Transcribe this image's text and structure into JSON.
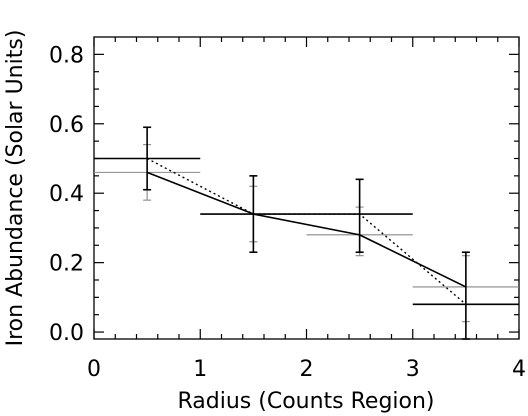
{
  "chart_data": {
    "type": "scatter",
    "xlabel": "Radius (Counts Region)",
    "ylabel": "Iron Abundance (Solar Units)",
    "xlim": [
      0,
      4
    ],
    "ylim": [
      -0.02,
      0.85
    ],
    "xticks": [
      "0",
      "1",
      "2",
      "3",
      "4"
    ],
    "yticks": [
      "0.0",
      "0.2",
      "0.4",
      "0.6",
      "0.8"
    ],
    "xtick_values": [
      0,
      1,
      2,
      3,
      4
    ],
    "ytick_values": [
      0.0,
      0.2,
      0.4,
      0.6,
      0.8
    ],
    "grid": false,
    "series": [
      {
        "style": "black-errorbars",
        "color": "#000000",
        "points": [
          {
            "x": 0.5,
            "y": 0.5,
            "xerr": 0.5,
            "ylo": 0.41,
            "yhi": 0.59
          },
          {
            "x": 1.5,
            "y": 0.34,
            "xerr": 0.5,
            "ylo": 0.23,
            "yhi": 0.45
          },
          {
            "x": 2.5,
            "y": 0.34,
            "xerr": 0.5,
            "ylo": 0.23,
            "yhi": 0.44
          },
          {
            "x": 3.5,
            "y": 0.08,
            "xerr": 0.5,
            "ylo": -0.02,
            "yhi": 0.23
          }
        ]
      },
      {
        "style": "gray-errorbars",
        "color": "#888888",
        "points": [
          {
            "x": 0.5,
            "y": 0.46,
            "xerr": 0.5,
            "ylo": 0.38,
            "yhi": 0.54
          },
          {
            "x": 1.5,
            "y": 0.34,
            "xerr": 0.5,
            "ylo": 0.26,
            "yhi": 0.42
          },
          {
            "x": 2.5,
            "y": 0.28,
            "xerr": 0.5,
            "ylo": 0.22,
            "yhi": 0.36
          },
          {
            "x": 3.5,
            "y": 0.13,
            "xerr": 0.5,
            "ylo": 0.03,
            "yhi": 0.22
          }
        ]
      },
      {
        "style": "solid-line",
        "color": "#000000",
        "x": [
          0.5,
          1.5,
          2.5,
          3.5
        ],
        "y": [
          0.46,
          0.34,
          0.28,
          0.13
        ]
      },
      {
        "style": "dotted-line",
        "color": "#000000",
        "x": [
          0.5,
          1.5,
          2.5,
          3.5
        ],
        "y": [
          0.5,
          0.34,
          0.34,
          0.08
        ]
      }
    ]
  }
}
